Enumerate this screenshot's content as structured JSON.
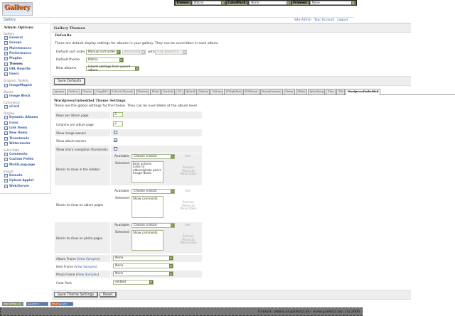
{
  "topbar": {
    "theme_label": "Theme:",
    "theme_value": "Matrix",
    "colorpack_label": "ColorPack:",
    "colorpack_value": "None",
    "frames_label": "Frames:",
    "frames_value": "None"
  },
  "logo": {
    "text": "Gallery"
  },
  "breadcrumb": "Gallery",
  "header_links": [
    "Site Admin",
    "Your Account",
    "Logout"
  ],
  "sidebar": {
    "title": "Admin Options",
    "groups": [
      {
        "label": "Gallery",
        "items": [
          "General",
          "Groups",
          "Maintenance",
          "Performance",
          "Plugins",
          "Themes",
          "URL Rewrite",
          "Users"
        ]
      },
      {
        "label": "Graphics Toolkits",
        "items": [
          "ImageMagick"
        ]
      },
      {
        "label": "Blocks",
        "items": [
          "Image Block"
        ]
      },
      {
        "label": "Commerce",
        "items": [
          "eCard"
        ]
      },
      {
        "label": "Display",
        "items": [
          "Dynamic Albums",
          "Icons",
          "Link Items",
          "New Items",
          "Thumbnails",
          "Watermarks"
        ]
      },
      {
        "label": "Extra Data",
        "items": [
          "Comments",
          "Custom Fields",
          "MultiLanguage"
        ]
      },
      {
        "label": "Import",
        "items": [
          "Remote",
          "Upload Applet",
          "Web/Server"
        ]
      }
    ],
    "current": "Themes"
  },
  "main": {
    "title": "Gallery Themes",
    "defaults": {
      "heading": "Defaults",
      "description": "These are default display settings for albums in your gallery.  They can be overridden in each album.",
      "sort_label": "Default sort order",
      "sort_value": "Manual sort order",
      "sort_dir": "Ascending",
      "with_label": "with",
      "with_value": "« no presort »",
      "theme_label": "Default theme",
      "theme_value": "Matrix",
      "new_label": "New albums",
      "new_value": "Inherit settings from parent album",
      "save_label": "Save Defaults"
    },
    "tabs": [
      "Ajaxian",
      "Carbon",
      "Classic",
      "Copyleft",
      "EclecticThreads",
      "Floatrix",
      "Fluid",
      "PorSale",
      "G1",
      "Hybrid",
      "Matrix",
      "Nature",
      "PGlightBox",
      "PGtheme",
      "RoundCorners",
      "Siriux",
      "Slider",
      "Splashang",
      "Tiles",
      "Tile",
      "WordpressEmbedded"
    ],
    "active_tab": "WordpressEmbedded",
    "theme": {
      "heading": "WordpressEmbedded Theme Settings",
      "description": "These are the global settings for the theme.  They can be overridden at the album level.",
      "rows_label": "Rows per album page",
      "rows_value": "3",
      "cols_label": "Columns per album page",
      "cols_value": "3",
      "image_owners_label": "Show image owners",
      "image_owners": false,
      "album_owners_label": "Show album owners",
      "album_owners": true,
      "micro_label": "Show micro navigation thumbnails",
      "micro": false,
      "available_label": "Available",
      "selected_label": "Selected",
      "choose": "Choose a block",
      "add": "Add",
      "remove": "Remove",
      "move_up": "Move Up",
      "move_down": "Move Down",
      "sidebar_label": "Blocks to show in the sidebar",
      "sidebar_selected": [
        "Item actions",
        "Links to album/photo peers",
        "Image Block"
      ],
      "album_label": "Blocks to show on album pages",
      "album_selected": [
        "Show comments"
      ],
      "photo_label": "Blocks to show on photo pages",
      "photo_selected": [
        "Show comments"
      ],
      "view_samples": "View Samples",
      "album_frame_label": "Album Frame",
      "album_frame": "None",
      "item_frame_label": "Item Frame",
      "item_frame": "None",
      "photo_frame_label": "Photo Frame",
      "photo_frame": "None",
      "colorpack_label": "Color Pack",
      "colorpack": "embed",
      "save_label": "Save Theme Settings",
      "reset_label": "Reset"
    }
  },
  "badges": [
    "W3C XHTML 1.0",
    "GALLERY 2",
    "HELP GALLERY"
  ],
  "footer": "Contact: admin at gallery2.hu - www.gallery2.hu - (c) 2006"
}
